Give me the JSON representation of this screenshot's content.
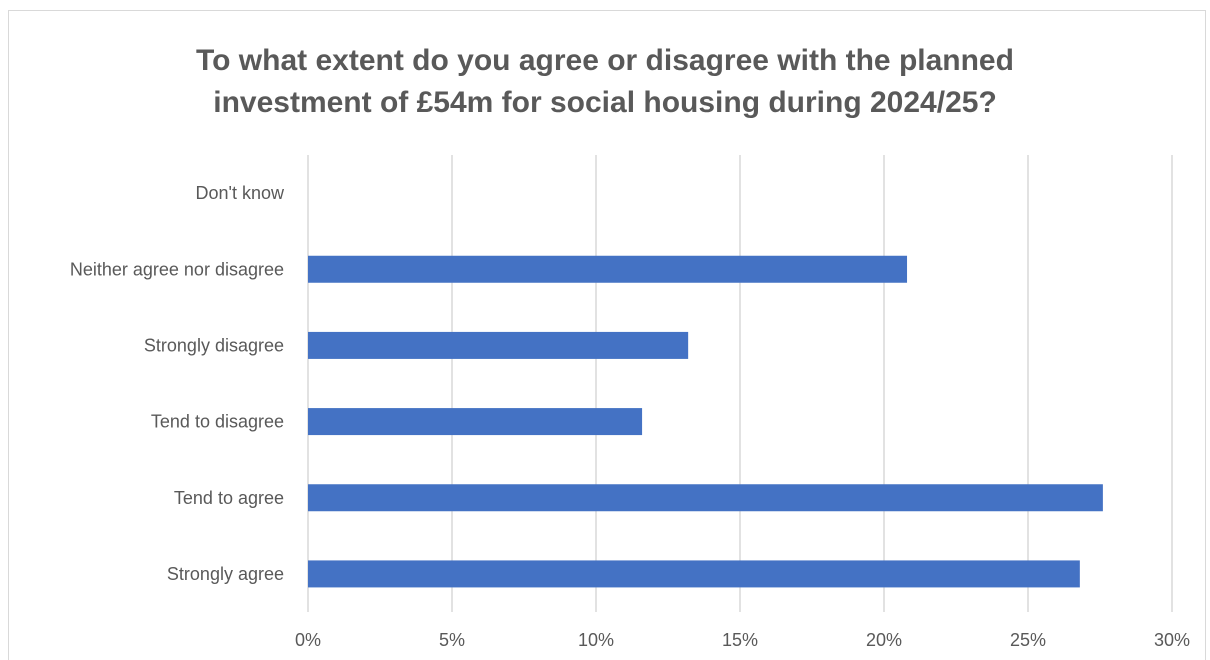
{
  "chart_data": {
    "type": "bar",
    "orientation": "horizontal",
    "title_lines": [
      "To what extent do you agree or disagree with the planned",
      "investment of £54m for social housing during 2024/25?"
    ],
    "categories": [
      "Don't know",
      "Neither agree nor disagree",
      "Strongly disagree",
      "Tend to disagree",
      "Tend to agree",
      "Strongly agree"
    ],
    "values": [
      0,
      20.8,
      13.2,
      11.6,
      27.6,
      26.8
    ],
    "xlim": [
      0,
      30
    ],
    "xticks": [
      0,
      5,
      10,
      15,
      20,
      25,
      30
    ],
    "xtick_labels": [
      "0%",
      "5%",
      "10%",
      "15%",
      "20%",
      "25%",
      "30%"
    ],
    "grid": "vertical",
    "legend": "none",
    "bar_color": "#4472c4",
    "grid_color": "#d9d9d9"
  }
}
